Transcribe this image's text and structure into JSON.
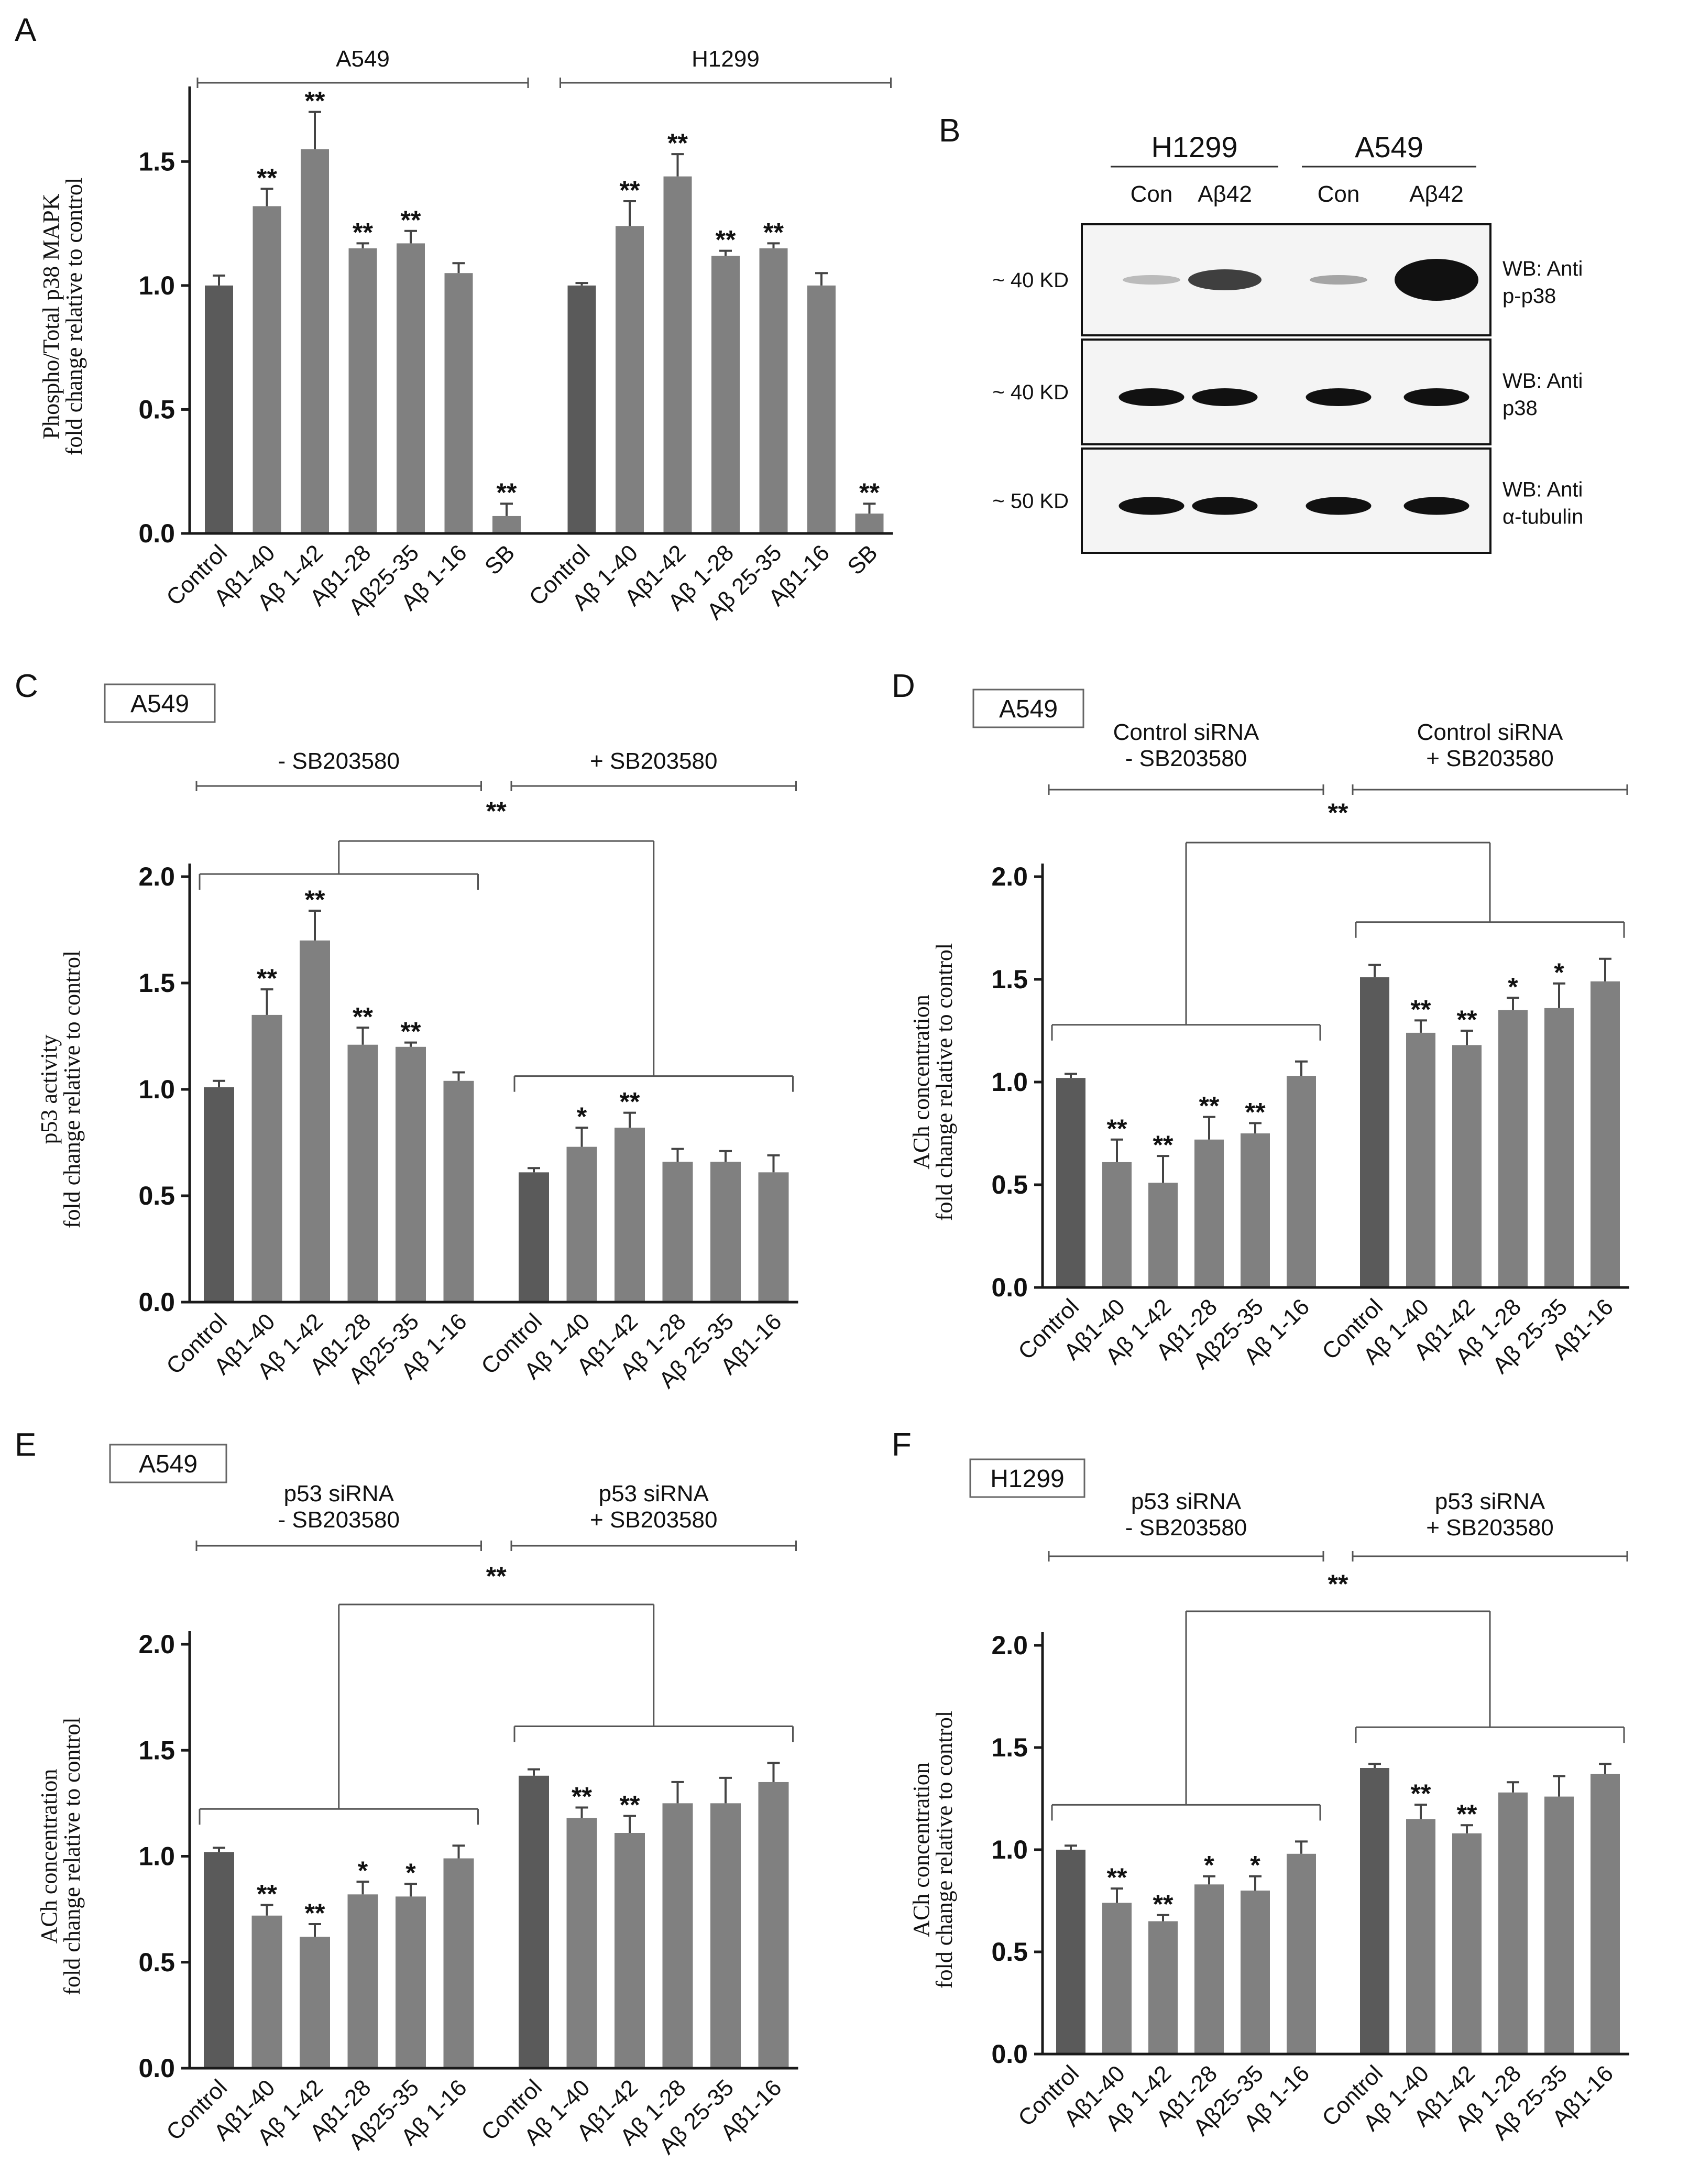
{
  "colors": {
    "control_bar": "#5a5a5a",
    "treatment_bar": "#808080",
    "axis": "#1a1a1a",
    "bracket": "#555555",
    "blot_background": "#f4f4f4",
    "band": "#111111"
  },
  "panel_b": {
    "letter": "B",
    "groups": [
      "H1299",
      "A549"
    ],
    "lanes": [
      "Con",
      "Aβ42",
      "Con",
      "Aβ42"
    ],
    "blots": [
      {
        "weight": "~ 40 KD",
        "label_lines": [
          "WB: Anti",
          "p-p38"
        ],
        "band_intensity": [
          0.25,
          0.8,
          0.35,
          1.0
        ]
      },
      {
        "weight": "~ 40 KD",
        "label_lines": [
          "WB: Anti",
          "p38"
        ],
        "band_intensity": [
          1.0,
          1.0,
          1.0,
          1.0
        ]
      },
      {
        "weight": "~ 50 KD",
        "label_lines": [
          "WB: Anti",
          "α-tubulin"
        ],
        "band_intensity": [
          1.0,
          1.0,
          1.0,
          1.0
        ]
      }
    ]
  },
  "chart_data": [
    {
      "panel": "A",
      "type": "bar",
      "title": "",
      "box_label": "",
      "groups": [
        {
          "label_lines": [
            "A549"
          ],
          "categories": [
            "Control",
            "Aβ1-40",
            "Aβ 1-42",
            "Aβ1-28",
            "Aβ25-35",
            "Aβ 1-16",
            "SB"
          ],
          "values": [
            1.0,
            1.32,
            1.55,
            1.15,
            1.17,
            1.05,
            0.07
          ],
          "errors": [
            0.04,
            0.07,
            0.15,
            0.02,
            0.05,
            0.04,
            0.05
          ],
          "stars": [
            "",
            "**",
            "**",
            "**",
            "**",
            "",
            "**"
          ]
        },
        {
          "label_lines": [
            "H1299"
          ],
          "categories": [
            "Control",
            "Aβ 1-40",
            "Aβ1-42",
            "Aβ 1-28",
            "Aβ 25-35",
            "Aβ1-16",
            "SB"
          ],
          "values": [
            1.0,
            1.24,
            1.44,
            1.12,
            1.15,
            1.0,
            0.08
          ],
          "errors": [
            0.01,
            0.1,
            0.09,
            0.02,
            0.02,
            0.05,
            0.04
          ],
          "stars": [
            "",
            "**",
            "**",
            "**",
            "**",
            "",
            "**"
          ]
        }
      ],
      "ylabel_lines": [
        "Phospho/Total p38 MAPK",
        "fold change relative to control"
      ],
      "ylim": [
        0,
        1.75
      ],
      "yticks": [
        "0.0",
        "0.5",
        "1.0",
        "1.5"
      ],
      "comparison": null
    },
    {
      "panel": "C",
      "type": "bar",
      "title": "",
      "box_label": "A549",
      "groups": [
        {
          "label_lines": [
            "- SB203580"
          ],
          "categories": [
            "Control",
            "Aβ1-40",
            "Aβ 1-42",
            "Aβ1-28",
            "Aβ25-35",
            "Aβ 1-16"
          ],
          "values": [
            1.01,
            1.35,
            1.7,
            1.21,
            1.2,
            1.04
          ],
          "errors": [
            0.03,
            0.12,
            0.14,
            0.08,
            0.02,
            0.04
          ],
          "stars": [
            "",
            "**",
            "**",
            "**",
            "**",
            ""
          ]
        },
        {
          "label_lines": [
            "+ SB203580"
          ],
          "categories": [
            "Control",
            "Aβ 1-40",
            "Aβ1-42",
            "Aβ 1-28",
            "Aβ 25-35",
            "Aβ1-16"
          ],
          "values": [
            0.61,
            0.73,
            0.82,
            0.66,
            0.66,
            0.61
          ],
          "errors": [
            0.02,
            0.09,
            0.07,
            0.06,
            0.05,
            0.08
          ],
          "stars": [
            "",
            "*",
            "**",
            "",
            "",
            ""
          ]
        }
      ],
      "ylabel_lines": [
        "p53 activity",
        "fold change relative to control"
      ],
      "ylim": [
        0,
        2.0
      ],
      "yticks": [
        "0.0",
        "0.5",
        "1.0",
        "1.5",
        "2.0"
      ],
      "comparison": "**"
    },
    {
      "panel": "D",
      "type": "bar",
      "title": "",
      "box_label": "A549",
      "groups": [
        {
          "label_lines": [
            "Control siRNA",
            "- SB203580"
          ],
          "categories": [
            "Control",
            "Aβ1-40",
            "Aβ 1-42",
            "Aβ1-28",
            "Aβ25-35",
            "Aβ 1-16"
          ],
          "values": [
            1.02,
            0.61,
            0.51,
            0.72,
            0.75,
            1.03
          ],
          "errors": [
            0.02,
            0.11,
            0.13,
            0.11,
            0.05,
            0.07
          ],
          "stars": [
            "",
            "**",
            "**",
            "**",
            "**",
            ""
          ]
        },
        {
          "label_lines": [
            "Control siRNA",
            "+ SB203580"
          ],
          "categories": [
            "Control",
            "Aβ 1-40",
            "Aβ1-42",
            "Aβ 1-28",
            "Aβ 25-35",
            "Aβ1-16"
          ],
          "values": [
            1.51,
            1.24,
            1.18,
            1.35,
            1.36,
            1.49
          ],
          "errors": [
            0.06,
            0.06,
            0.07,
            0.06,
            0.12,
            0.11
          ],
          "stars": [
            "",
            "**",
            "**",
            "*",
            "*",
            ""
          ]
        }
      ],
      "ylabel_lines": [
        "ACh concentration",
        "fold change relative to control"
      ],
      "ylim": [
        0,
        2.0
      ],
      "yticks": [
        "0.0",
        "0.5",
        "1.0",
        "1.5",
        "2.0"
      ],
      "comparison": "**"
    },
    {
      "panel": "E",
      "type": "bar",
      "title": "",
      "box_label": "A549",
      "groups": [
        {
          "label_lines": [
            "p53 siRNA",
            "- SB203580"
          ],
          "categories": [
            "Control",
            "Aβ1-40",
            "Aβ 1-42",
            "Aβ1-28",
            "Aβ25-35",
            "Aβ 1-16"
          ],
          "values": [
            1.02,
            0.72,
            0.62,
            0.82,
            0.81,
            0.99
          ],
          "errors": [
            0.02,
            0.05,
            0.06,
            0.06,
            0.06,
            0.06
          ],
          "stars": [
            "",
            "**",
            "**",
            "*",
            "*",
            ""
          ]
        },
        {
          "label_lines": [
            "p53 siRNA",
            "+ SB203580"
          ],
          "categories": [
            "Control",
            "Aβ 1-40",
            "Aβ1-42",
            "Aβ 1-28",
            "Aβ 25-35",
            "Aβ1-16"
          ],
          "values": [
            1.38,
            1.18,
            1.11,
            1.25,
            1.25,
            1.35
          ],
          "errors": [
            0.03,
            0.05,
            0.08,
            0.1,
            0.12,
            0.09
          ],
          "stars": [
            "",
            "**",
            "**",
            "",
            "",
            ""
          ]
        }
      ],
      "ylabel_lines": [
        "ACh concentration",
        "fold change relative to control"
      ],
      "ylim": [
        0,
        2.0
      ],
      "yticks": [
        "0.0",
        "0.5",
        "1.0",
        "1.5",
        "2.0"
      ],
      "comparison": "**"
    },
    {
      "panel": "F",
      "type": "bar",
      "title": "",
      "box_label": "H1299",
      "groups": [
        {
          "label_lines": [
            "p53 siRNA",
            "- SB203580"
          ],
          "categories": [
            "Control",
            "Aβ1-40",
            "Aβ 1-42",
            "Aβ1-28",
            "Aβ25-35",
            "Aβ 1-16"
          ],
          "values": [
            1.0,
            0.74,
            0.65,
            0.83,
            0.8,
            0.98
          ],
          "errors": [
            0.02,
            0.07,
            0.03,
            0.04,
            0.07,
            0.06
          ],
          "stars": [
            "",
            "**",
            "**",
            "*",
            "*",
            ""
          ]
        },
        {
          "label_lines": [
            "p53 siRNA",
            "+ SB203580"
          ],
          "categories": [
            "Control",
            "Aβ 1-40",
            "Aβ1-42",
            "Aβ 1-28",
            "Aβ 25-35",
            "Aβ1-16"
          ],
          "values": [
            1.4,
            1.15,
            1.08,
            1.28,
            1.26,
            1.37
          ],
          "errors": [
            0.02,
            0.07,
            0.04,
            0.05,
            0.1,
            0.05
          ],
          "stars": [
            "",
            "**",
            "**",
            "",
            "",
            ""
          ]
        }
      ],
      "ylabel_lines": [
        "ACh concentration",
        "fold change relative to control"
      ],
      "ylim": [
        0,
        2.0
      ],
      "yticks": [
        "0.0",
        "0.5",
        "1.0",
        "1.5",
        "2.0"
      ],
      "comparison": "**"
    }
  ]
}
